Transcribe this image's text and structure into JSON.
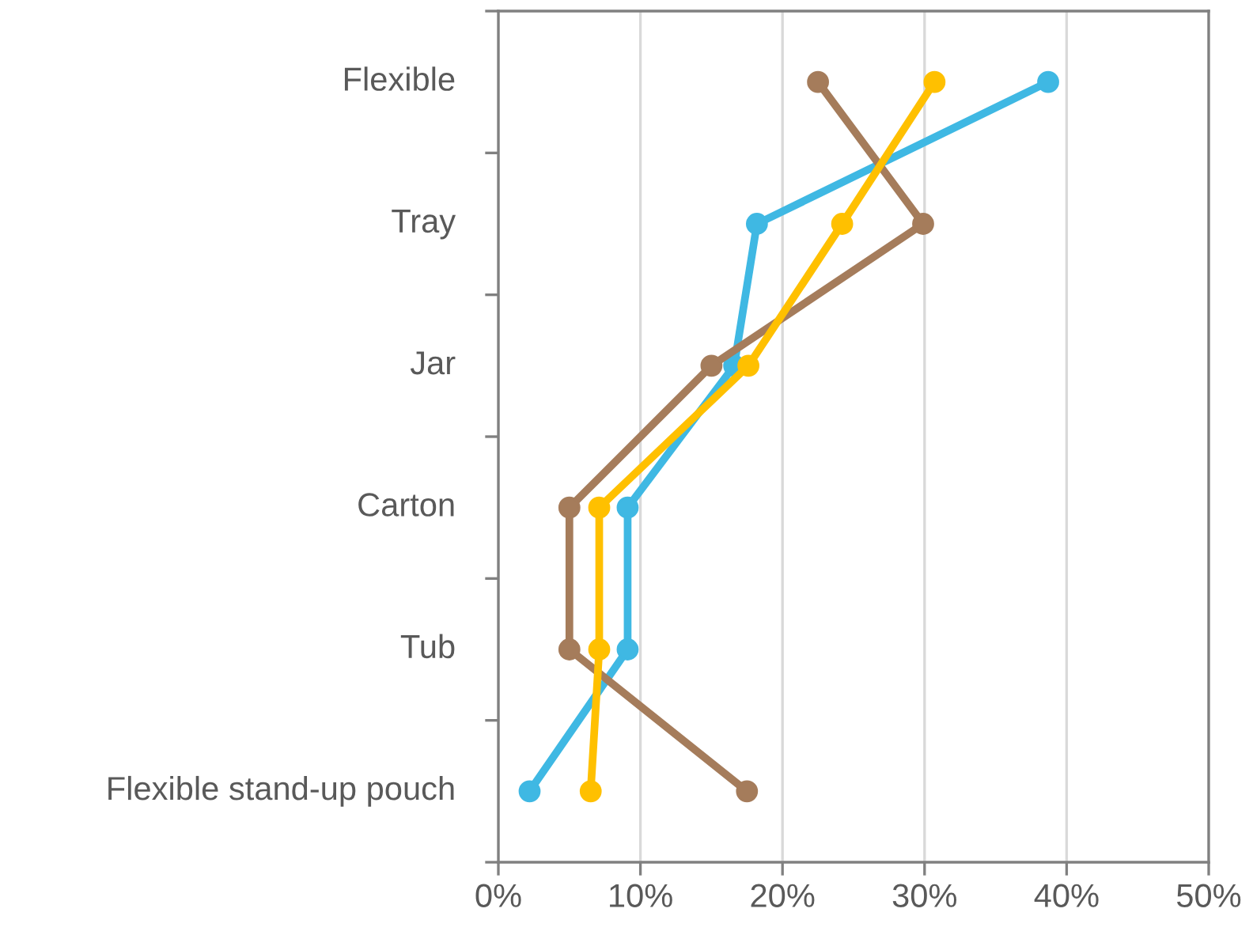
{
  "chart_data": {
    "type": "line",
    "orientation": "horizontal",
    "categories": [
      "Flexible",
      "Tray",
      "Jar",
      "Carton",
      "Tub",
      "Flexible stand-up pouch"
    ],
    "series": [
      {
        "color": "#3fb8e3",
        "values": [
          38.7,
          18.2,
          16.6,
          9.1,
          9.1,
          2.2
        ]
      },
      {
        "color": "#a57c5b",
        "values": [
          22.5,
          29.9,
          15.0,
          5.0,
          5.0,
          17.5
        ]
      },
      {
        "color": "#ffc000",
        "values": [
          30.7,
          24.2,
          17.6,
          7.1,
          7.1,
          6.5
        ]
      }
    ],
    "xlim": [
      0,
      50
    ],
    "xticks": [
      {
        "value": 0,
        "label": "0%"
      },
      {
        "value": 10,
        "label": "10%"
      },
      {
        "value": 20,
        "label": "20%"
      },
      {
        "value": 30,
        "label": "30%"
      },
      {
        "value": 40,
        "label": "40%"
      },
      {
        "value": 50,
        "label": "50%"
      }
    ],
    "grid": "x",
    "marker": "circle",
    "line_style": "solid"
  }
}
